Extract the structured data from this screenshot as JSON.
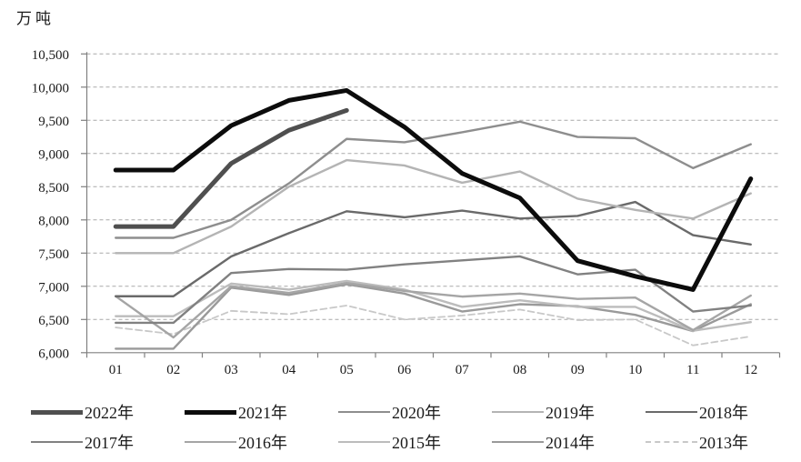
{
  "unit_label": "万吨",
  "chart_data": {
    "type": "line",
    "title": "",
    "xlabel": "",
    "ylabel": "万吨",
    "x_categories": [
      "01",
      "02",
      "03",
      "04",
      "05",
      "06",
      "07",
      "08",
      "09",
      "10",
      "11",
      "12"
    ],
    "ylim": [
      6000,
      10500
    ],
    "ytick_step": 500,
    "ytick_labels": [
      "10,500",
      "10,000",
      "9,500",
      "9,000",
      "8,500",
      "8,000",
      "7,500",
      "7,000",
      "6,500",
      "6,000"
    ],
    "grid": "horizontal-dashed",
    "legend_position": "bottom",
    "axis_color": "#808080",
    "gridline_color": "#a9a9a9",
    "series": [
      {
        "name": "2022年",
        "color": "#4f4f4f",
        "width": 5,
        "dashed": false,
        "values": [
          7900,
          7900,
          8850,
          9350,
          9650
        ]
      },
      {
        "name": "2021年",
        "color": "#0c0c0c",
        "width": 5,
        "dashed": false,
        "values": [
          8750,
          8750,
          9420,
          9800,
          9950,
          9400,
          8700,
          8330,
          7385,
          7150,
          6950,
          8620
        ]
      },
      {
        "name": "2020年",
        "color": "#8e8e8e",
        "width": 2.4,
        "dashed": false,
        "values": [
          7730,
          7730,
          8000,
          8550,
          9220,
          9170,
          9320,
          9480,
          9250,
          9230,
          8780,
          9140
        ]
      },
      {
        "name": "2019年",
        "color": "#b4b4b4",
        "width": 2.4,
        "dashed": false,
        "values": [
          7500,
          7500,
          7900,
          8500,
          8900,
          8820,
          8560,
          8730,
          8320,
          8150,
          8020,
          8400
        ]
      },
      {
        "name": "2018年",
        "color": "#6a6a6a",
        "width": 2.4,
        "dashed": false,
        "values": [
          6850,
          6850,
          7450,
          7800,
          8130,
          8040,
          8140,
          8020,
          8060,
          8270,
          7770,
          7630
        ]
      },
      {
        "name": "2017年",
        "color": "#818181",
        "width": 2.4,
        "dashed": false,
        "values": [
          6450,
          6450,
          7200,
          7260,
          7250,
          7330,
          7390,
          7450,
          7180,
          7250,
          6620,
          6710
        ]
      },
      {
        "name": "2016年",
        "color": "#a5a5a5",
        "width": 2.4,
        "dashed": false,
        "values": [
          6850,
          6230,
          7000,
          6900,
          7050,
          6930,
          6845,
          6890,
          6810,
          6830,
          6340,
          6860
        ]
      },
      {
        "name": "2015年",
        "color": "#bcbcbc",
        "width": 2.4,
        "dashed": false,
        "values": [
          6550,
          6550,
          7040,
          6950,
          7080,
          6950,
          6690,
          6790,
          6690,
          6690,
          6330,
          6460
        ]
      },
      {
        "name": "2014年",
        "color": "#9a9a9a",
        "width": 2.4,
        "dashed": false,
        "values": [
          6060,
          6060,
          6980,
          6870,
          7030,
          6890,
          6620,
          6730,
          6700,
          6570,
          6325,
          6730
        ]
      },
      {
        "name": "2013年",
        "color": "#c8c8c8",
        "width": 1.8,
        "dashed": true,
        "values": [
          6380,
          6280,
          6630,
          6580,
          6710,
          6500,
          6560,
          6650,
          6490,
          6500,
          6110,
          6245
        ]
      }
    ]
  }
}
